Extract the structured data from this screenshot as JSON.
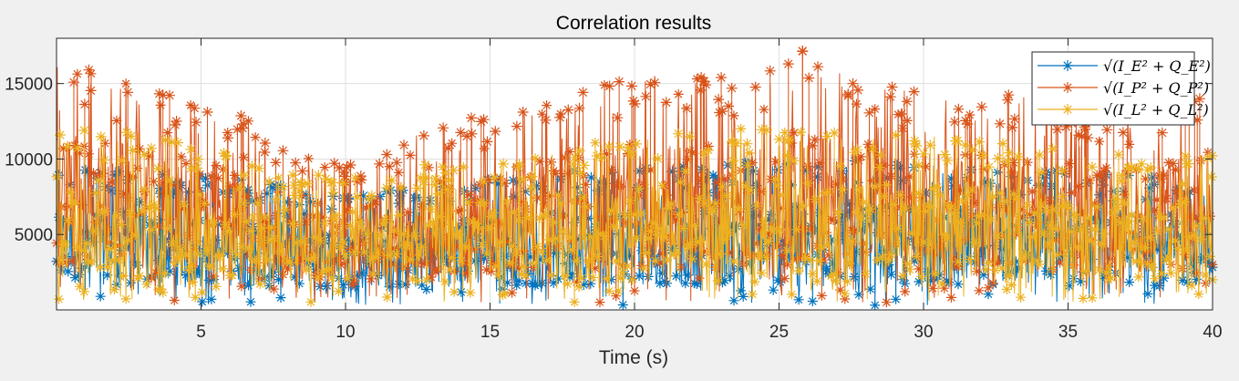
{
  "chart_data": {
    "type": "line",
    "title": "Correlation results",
    "xlabel": "Time (s)",
    "ylabel": "",
    "xlim": [
      0,
      40
    ],
    "ylim": [
      0,
      18000
    ],
    "grid": true,
    "legend_position": "top-right",
    "marker": "asterisk",
    "x_ticks": [
      5,
      10,
      15,
      20,
      25,
      30,
      35,
      40
    ],
    "x_tick_labels": [
      "5",
      "10",
      "15",
      "20",
      "25",
      "30",
      "35",
      "40"
    ],
    "y_ticks": [
      5000,
      10000,
      15000
    ],
    "y_tick_labels": [
      "5000",
      "10000",
      "15000"
    ],
    "series": [
      {
        "name": "√(I_E² + Q_E²)",
        "color": "#0072bd",
        "x": [
          0,
          2,
          4,
          6,
          8,
          10,
          12,
          14,
          16,
          18,
          20,
          22,
          24,
          26,
          28,
          30,
          32,
          34,
          36,
          38,
          40
        ],
        "mean": [
          4000,
          4000,
          3900,
          3800,
          3600,
          3400,
          3500,
          3700,
          3900,
          4000,
          4100,
          4200,
          4300,
          4400,
          4300,
          4200,
          4100,
          4000,
          3900,
          3900,
          3800
        ],
        "max": [
          9500,
          9300,
          9000,
          8800,
          8200,
          7700,
          8000,
          8600,
          9000,
          9300,
          9500,
          9700,
          9900,
          10100,
          9900,
          9700,
          9500,
          9300,
          9100,
          9000,
          8900
        ],
        "min": [
          300,
          300,
          300,
          300,
          300,
          300,
          300,
          300,
          300,
          300,
          300,
          300,
          300,
          300,
          300,
          300,
          300,
          300,
          300,
          300,
          300
        ]
      },
      {
        "name": "√(I_P² + Q_P²)",
        "color": "#d95319",
        "x": [
          0,
          2,
          4,
          6,
          8,
          10,
          12,
          14,
          16,
          18,
          20,
          22,
          24,
          26,
          28,
          30,
          32,
          34,
          36,
          38,
          40
        ],
        "mean": [
          6500,
          6300,
          6000,
          5700,
          5200,
          4800,
          5100,
          5600,
          6000,
          6300,
          6500,
          6700,
          6800,
          6900,
          6800,
          6600,
          6500,
          6300,
          6200,
          6100,
          6000
        ],
        "max": [
          16500,
          16000,
          14500,
          13500,
          11000,
          9500,
          11500,
          12500,
          14000,
          15000,
          15500,
          16000,
          15500,
          17500,
          15500,
          15000,
          14500,
          14000,
          13500,
          13500,
          15000
        ],
        "min": [
          500,
          500,
          500,
          500,
          500,
          500,
          500,
          500,
          500,
          500,
          500,
          500,
          500,
          500,
          500,
          500,
          500,
          500,
          500,
          500,
          500
        ]
      },
      {
        "name": "√(I_L² + Q_L²)",
        "color": "#edb120",
        "x": [
          0,
          2,
          4,
          6,
          8,
          10,
          12,
          14,
          16,
          18,
          20,
          22,
          24,
          26,
          28,
          30,
          32,
          34,
          36,
          38,
          40
        ],
        "mean": [
          4000,
          4000,
          3900,
          3800,
          3600,
          3400,
          3500,
          3700,
          3900,
          4000,
          4100,
          4200,
          4300,
          4400,
          4300,
          4200,
          4100,
          4000,
          3900,
          3900,
          3800
        ],
        "max": [
          12500,
          12000,
          11500,
          10500,
          9500,
          9000,
          9500,
          10000,
          10500,
          11000,
          11500,
          12000,
          12000,
          12500,
          12000,
          11500,
          11500,
          11000,
          10500,
          10500,
          10500
        ],
        "min": [
          500,
          500,
          500,
          500,
          500,
          500,
          500,
          500,
          500,
          500,
          500,
          500,
          500,
          500,
          500,
          500,
          500,
          500,
          500,
          500,
          500
        ]
      }
    ]
  }
}
